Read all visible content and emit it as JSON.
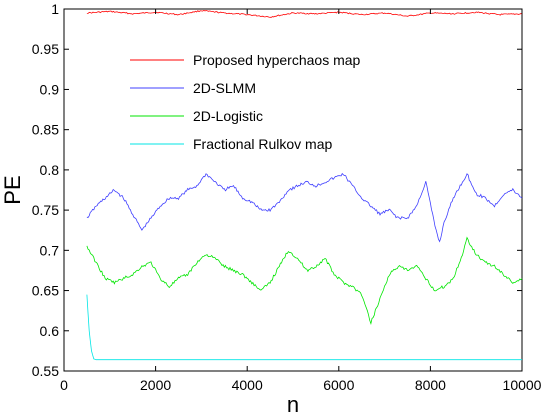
{
  "chart_data": {
    "type": "line",
    "title": "",
    "xlabel": "n",
    "ylabel": "PE",
    "xlim": [
      0,
      10000
    ],
    "ylim": [
      0.55,
      1.0
    ],
    "xticks": [
      0,
      2000,
      4000,
      6000,
      8000,
      10000
    ],
    "xtick_labels": [
      "0",
      "2000",
      "4000",
      "6000",
      "8000",
      "10000"
    ],
    "yticks": [
      0.55,
      0.6,
      0.65,
      0.7,
      0.75,
      0.8,
      0.85,
      0.9,
      0.95,
      1.0
    ],
    "ytick_labels": [
      "0.55",
      "0.6",
      "0.65",
      "0.7",
      "0.75",
      "0.8",
      "0.85",
      "0.9",
      "0.95",
      "1"
    ],
    "grid": false,
    "legend_position": "top-center",
    "series": [
      {
        "name": "Proposed hyperchaos map",
        "color": "#ff0000",
        "x": [
          500,
          1000,
          1500,
          2000,
          2500,
          3000,
          3500,
          4000,
          4500,
          5000,
          5500,
          6000,
          6500,
          7000,
          7500,
          8000,
          8500,
          9000,
          9500,
          10000
        ],
        "y": [
          0.995,
          0.997,
          0.994,
          0.996,
          0.993,
          0.998,
          0.995,
          0.993,
          0.99,
          0.995,
          0.994,
          0.996,
          0.993,
          0.995,
          0.991,
          0.995,
          0.994,
          0.996,
          0.993,
          0.994
        ]
      },
      {
        "name": "2D-SLMM",
        "color": "#4040ff",
        "x": [
          500,
          700,
          900,
          1100,
          1300,
          1500,
          1700,
          1900,
          2100,
          2300,
          2500,
          2700,
          2900,
          3100,
          3300,
          3500,
          3700,
          3900,
          4100,
          4300,
          4500,
          4700,
          4900,
          5100,
          5300,
          5500,
          5700,
          5900,
          6100,
          6300,
          6500,
          6700,
          6900,
          7100,
          7300,
          7500,
          7700,
          7900,
          8100,
          8200,
          8300,
          8500,
          8700,
          8800,
          9000,
          9200,
          9400,
          9600,
          9800,
          10000
        ],
        "y": [
          0.74,
          0.755,
          0.765,
          0.775,
          0.765,
          0.745,
          0.725,
          0.74,
          0.755,
          0.765,
          0.765,
          0.775,
          0.78,
          0.795,
          0.785,
          0.775,
          0.78,
          0.765,
          0.76,
          0.75,
          0.75,
          0.76,
          0.775,
          0.78,
          0.785,
          0.78,
          0.785,
          0.79,
          0.795,
          0.78,
          0.765,
          0.755,
          0.745,
          0.75,
          0.74,
          0.74,
          0.755,
          0.785,
          0.73,
          0.71,
          0.735,
          0.765,
          0.785,
          0.795,
          0.77,
          0.765,
          0.755,
          0.77,
          0.775,
          0.765
        ]
      },
      {
        "name": "2D-Logistic",
        "color": "#00e600",
        "x": [
          500,
          700,
          900,
          1100,
          1300,
          1500,
          1700,
          1900,
          2100,
          2300,
          2500,
          2700,
          2900,
          3100,
          3300,
          3500,
          3700,
          3900,
          4100,
          4300,
          4500,
          4700,
          4900,
          5100,
          5300,
          5500,
          5700,
          5900,
          6100,
          6300,
          6500,
          6700,
          6900,
          7100,
          7300,
          7500,
          7700,
          7900,
          8100,
          8300,
          8500,
          8700,
          8800,
          9000,
          9200,
          9400,
          9600,
          9800,
          10000
        ],
        "y": [
          0.705,
          0.685,
          0.665,
          0.66,
          0.665,
          0.67,
          0.68,
          0.685,
          0.665,
          0.655,
          0.665,
          0.67,
          0.685,
          0.695,
          0.69,
          0.68,
          0.675,
          0.67,
          0.66,
          0.65,
          0.66,
          0.68,
          0.7,
          0.69,
          0.675,
          0.68,
          0.69,
          0.67,
          0.66,
          0.655,
          0.645,
          0.61,
          0.64,
          0.67,
          0.68,
          0.675,
          0.68,
          0.665,
          0.65,
          0.655,
          0.665,
          0.695,
          0.715,
          0.695,
          0.685,
          0.68,
          0.67,
          0.66,
          0.665
        ]
      },
      {
        "name": "Fractional Rulkov map",
        "color": "#00e6e6",
        "x": [
          500,
          550,
          600,
          650,
          700,
          1000,
          2000,
          3000,
          4000,
          5000,
          6000,
          7000,
          8000,
          9000,
          10000
        ],
        "y": [
          0.645,
          0.6,
          0.575,
          0.565,
          0.564,
          0.564,
          0.564,
          0.564,
          0.564,
          0.564,
          0.564,
          0.564,
          0.564,
          0.564,
          0.564
        ]
      }
    ]
  }
}
